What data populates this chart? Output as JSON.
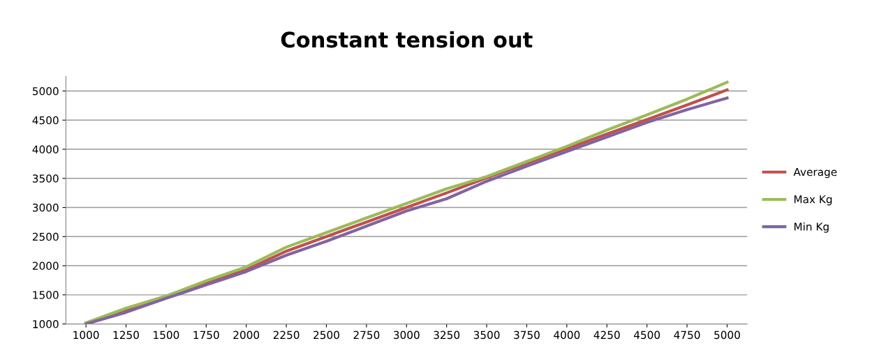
{
  "chart_data": {
    "type": "line",
    "title": "Constant tension out",
    "categories": [
      "1000",
      "1250",
      "1500",
      "1750",
      "2000",
      "2250",
      "2500",
      "2750",
      "3000",
      "3250",
      "3500",
      "3750",
      "4000",
      "4250",
      "4500",
      "4750",
      "5000"
    ],
    "series": [
      {
        "name": "Average",
        "color": "#c0504d",
        "values": [
          1000,
          1230,
          1460,
          1700,
          1930,
          2250,
          2500,
          2750,
          3000,
          3250,
          3510,
          3760,
          4010,
          4260,
          4510,
          4760,
          5020
        ]
      },
      {
        "name": "Max Kg",
        "color": "#9bbb59",
        "values": [
          1020,
          1270,
          1480,
          1740,
          1980,
          2320,
          2570,
          2820,
          3070,
          3320,
          3530,
          3790,
          4050,
          4330,
          4590,
          4860,
          5150
        ]
      },
      {
        "name": "Min Kg",
        "color": "#8064a2",
        "values": [
          1000,
          1200,
          1440,
          1670,
          1900,
          2180,
          2420,
          2680,
          2940,
          3150,
          3450,
          3710,
          3960,
          4210,
          4460,
          4680,
          4880
        ]
      }
    ],
    "ylim": [
      1000,
      5250
    ],
    "yticks": [
      1000,
      1500,
      2000,
      2500,
      3000,
      3500,
      4000,
      4500,
      5000
    ],
    "grid": "y",
    "legend": "right",
    "marker": "none",
    "line_style": "solid"
  }
}
